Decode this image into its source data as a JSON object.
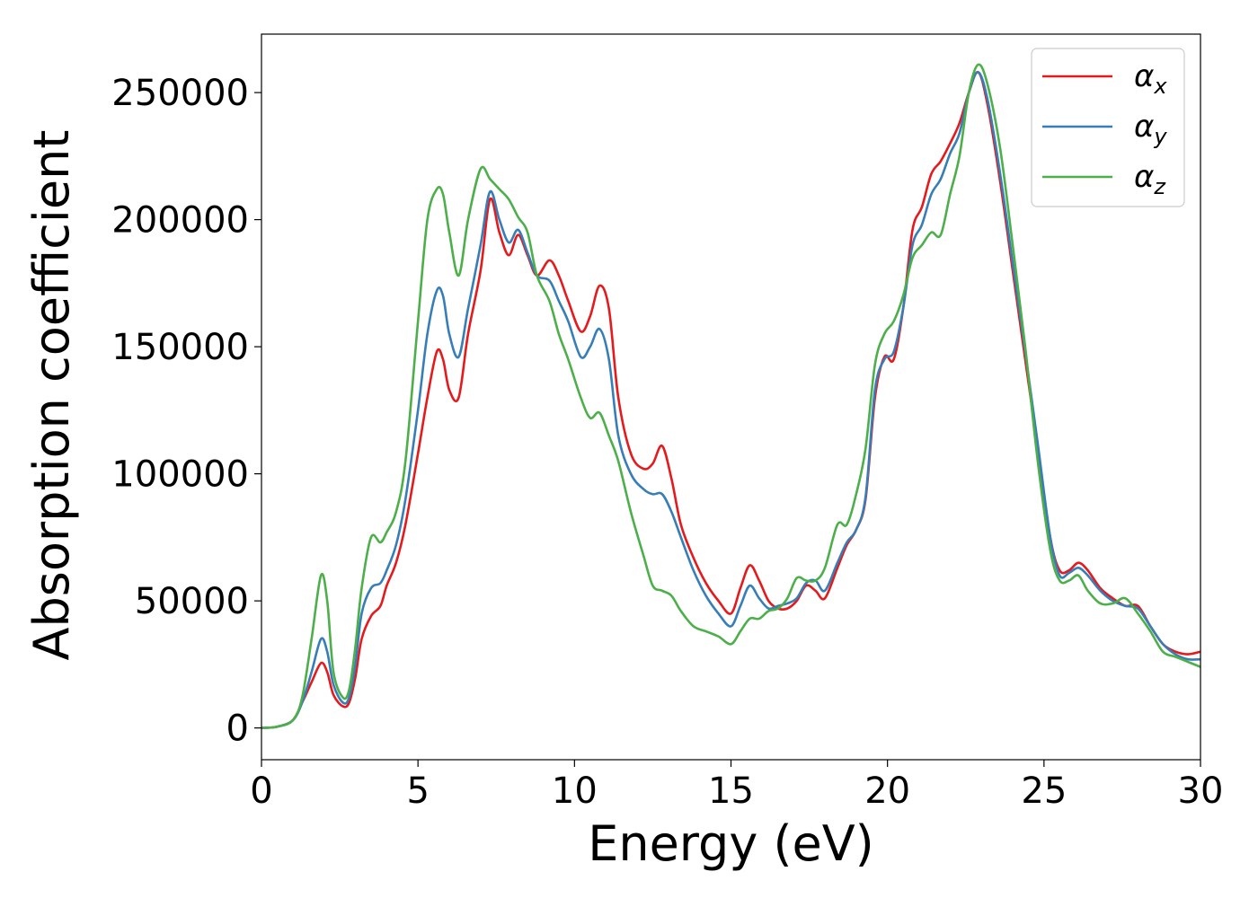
{
  "chart_data": {
    "type": "line",
    "title": "",
    "xlabel": "Energy (eV)",
    "ylabel": "Absorption coefficient",
    "xlim": [
      0,
      30
    ],
    "ylim": [
      -12500,
      273000
    ],
    "xticks": [
      0,
      5,
      10,
      15,
      20,
      25,
      30
    ],
    "xtick_labels": [
      "0",
      "5",
      "10",
      "15",
      "20",
      "25",
      "30"
    ],
    "yticks": [
      0,
      50000,
      100000,
      150000,
      200000,
      250000
    ],
    "ytick_labels": [
      "0",
      "50000",
      "100000",
      "150000",
      "200000",
      "250000"
    ],
    "grid": false,
    "legend_position": "top-right",
    "series": [
      {
        "name": "α",
        "subscript": "x",
        "color": "#e41a1c",
        "x": [
          0,
          0.5,
          1.0,
          1.3,
          1.6,
          1.9,
          2.1,
          2.3,
          2.6,
          2.8,
          3.0,
          3.2,
          3.5,
          3.8,
          4.0,
          4.3,
          4.6,
          5.0,
          5.3,
          5.6,
          5.8,
          6.0,
          6.3,
          6.6,
          7.0,
          7.3,
          7.6,
          7.9,
          8.2,
          8.5,
          8.8,
          9.2,
          9.5,
          9.8,
          10.2,
          10.5,
          10.8,
          11.1,
          11.4,
          11.8,
          12.2,
          12.5,
          12.8,
          13.1,
          13.4,
          13.8,
          14.2,
          14.6,
          15.0,
          15.3,
          15.6,
          15.9,
          16.2,
          16.5,
          16.8,
          17.1,
          17.4,
          17.7,
          18.0,
          18.4,
          18.7,
          19.0,
          19.3,
          19.6,
          19.9,
          20.2,
          20.5,
          20.8,
          21.1,
          21.4,
          21.7,
          22.0,
          22.3,
          22.6,
          22.9,
          23.2,
          23.6,
          24.0,
          24.4,
          24.8,
          25.2,
          25.5,
          25.8,
          26.1,
          26.4,
          26.8,
          27.2,
          27.6,
          28.0,
          28.4,
          28.8,
          29.2,
          29.6,
          30.0
        ],
        "y": [
          0,
          500,
          3000,
          10000,
          18000,
          25500,
          22000,
          13000,
          8500,
          10000,
          20000,
          35000,
          44000,
          48000,
          56000,
          65000,
          80000,
          108000,
          130000,
          148000,
          145000,
          133000,
          130000,
          155000,
          180000,
          208000,
          195000,
          186000,
          194000,
          186000,
          178000,
          184000,
          178000,
          168000,
          156000,
          162000,
          174000,
          165000,
          130000,
          108000,
          102000,
          104000,
          111000,
          98000,
          80000,
          67000,
          57000,
          50000,
          45000,
          55000,
          64000,
          58000,
          50000,
          47000,
          47000,
          50000,
          56000,
          54000,
          51000,
          63000,
          72000,
          78000,
          90000,
          130000,
          146000,
          145000,
          165000,
          196000,
          205000,
          218000,
          223000,
          230000,
          238000,
          250000,
          258000,
          245000,
          215000,
          180000,
          145000,
          110000,
          75000,
          62000,
          62000,
          65000,
          62000,
          55000,
          51000,
          48000,
          48000,
          40000,
          33000,
          30000,
          29000,
          30000
        ]
      },
      {
        "name": "α",
        "subscript": "y",
        "color": "#377eb8",
        "x": [
          0,
          0.5,
          1.0,
          1.3,
          1.6,
          1.9,
          2.1,
          2.3,
          2.6,
          2.8,
          3.0,
          3.2,
          3.5,
          3.8,
          4.0,
          4.3,
          4.6,
          5.0,
          5.3,
          5.6,
          5.8,
          6.0,
          6.3,
          6.6,
          7.0,
          7.3,
          7.6,
          7.9,
          8.2,
          8.5,
          8.8,
          9.2,
          9.5,
          9.8,
          10.2,
          10.5,
          10.8,
          11.1,
          11.4,
          11.8,
          12.2,
          12.5,
          12.8,
          13.1,
          13.4,
          13.8,
          14.2,
          14.6,
          15.0,
          15.3,
          15.6,
          15.9,
          16.2,
          16.5,
          16.8,
          17.1,
          17.4,
          17.7,
          18.0,
          18.4,
          18.7,
          19.0,
          19.3,
          19.6,
          19.9,
          20.2,
          20.5,
          20.8,
          21.1,
          21.4,
          21.7,
          22.0,
          22.3,
          22.6,
          22.9,
          23.2,
          23.6,
          24.0,
          24.4,
          24.8,
          25.2,
          25.5,
          25.8,
          26.1,
          26.4,
          26.8,
          27.2,
          27.6,
          28.0,
          28.4,
          28.8,
          29.2,
          29.6,
          30.0
        ],
        "y": [
          0,
          500,
          3000,
          10000,
          22000,
          35000,
          30000,
          17000,
          10000,
          12000,
          25000,
          45000,
          55000,
          57000,
          62000,
          72000,
          90000,
          125000,
          155000,
          172000,
          170000,
          155000,
          146000,
          165000,
          190000,
          211000,
          200000,
          191000,
          196000,
          187000,
          178000,
          176000,
          168000,
          160000,
          146000,
          150000,
          157000,
          145000,
          115000,
          100000,
          94000,
          92000,
          92000,
          85000,
          75000,
          62000,
          52000,
          45000,
          40000,
          48000,
          56000,
          51000,
          47000,
          48000,
          49000,
          51000,
          57000,
          58000,
          54000,
          65000,
          73000,
          78000,
          91000,
          133000,
          145000,
          148000,
          165000,
          190000,
          198000,
          210000,
          216000,
          226000,
          234000,
          250000,
          258000,
          247000,
          218000,
          183000,
          148000,
          112000,
          75000,
          60000,
          61000,
          63000,
          60000,
          54000,
          50000,
          48000,
          47000,
          40000,
          33000,
          29000,
          27000,
          27000
        ]
      },
      {
        "name": "α",
        "subscript": "z",
        "color": "#4daf4a",
        "x": [
          0,
          0.5,
          1.0,
          1.3,
          1.6,
          1.9,
          2.1,
          2.3,
          2.6,
          2.8,
          3.0,
          3.2,
          3.5,
          3.8,
          4.0,
          4.3,
          4.6,
          5.0,
          5.3,
          5.6,
          5.8,
          6.0,
          6.3,
          6.6,
          7.0,
          7.3,
          7.6,
          7.9,
          8.2,
          8.5,
          8.8,
          9.2,
          9.5,
          9.8,
          10.2,
          10.5,
          10.8,
          11.1,
          11.4,
          11.8,
          12.2,
          12.5,
          12.8,
          13.1,
          13.4,
          13.8,
          14.2,
          14.6,
          15.0,
          15.3,
          15.6,
          15.9,
          16.2,
          16.5,
          16.8,
          17.1,
          17.4,
          17.7,
          18.0,
          18.4,
          18.7,
          19.0,
          19.3,
          19.6,
          19.9,
          20.2,
          20.5,
          20.8,
          21.1,
          21.4,
          21.7,
          22.0,
          22.3,
          22.6,
          22.9,
          23.2,
          23.6,
          24.0,
          24.4,
          24.8,
          25.2,
          25.5,
          25.8,
          26.1,
          26.4,
          26.8,
          27.2,
          27.6,
          28.0,
          28.4,
          28.8,
          29.2,
          29.6,
          30.0
        ],
        "y": [
          0,
          500,
          3000,
          12000,
          35000,
          60000,
          50000,
          22000,
          12000,
          15000,
          32000,
          55000,
          75000,
          73000,
          77000,
          85000,
          105000,
          160000,
          200000,
          212000,
          210000,
          195000,
          178000,
          200000,
          220000,
          216000,
          212000,
          208000,
          201000,
          195000,
          178000,
          168000,
          155000,
          145000,
          130000,
          122000,
          124000,
          115000,
          105000,
          85000,
          68000,
          56000,
          54000,
          52000,
          46000,
          40000,
          38000,
          36000,
          33000,
          38000,
          43000,
          43000,
          46000,
          47000,
          51000,
          59000,
          58000,
          58000,
          63000,
          80000,
          80000,
          92000,
          110000,
          143000,
          155000,
          160000,
          170000,
          185000,
          190000,
          195000,
          194000,
          210000,
          225000,
          250000,
          261000,
          253000,
          228000,
          190000,
          150000,
          105000,
          70000,
          58000,
          58000,
          60000,
          54000,
          49000,
          49000,
          51000,
          45000,
          38000,
          30000,
          28000,
          26000,
          24000
        ]
      }
    ]
  }
}
